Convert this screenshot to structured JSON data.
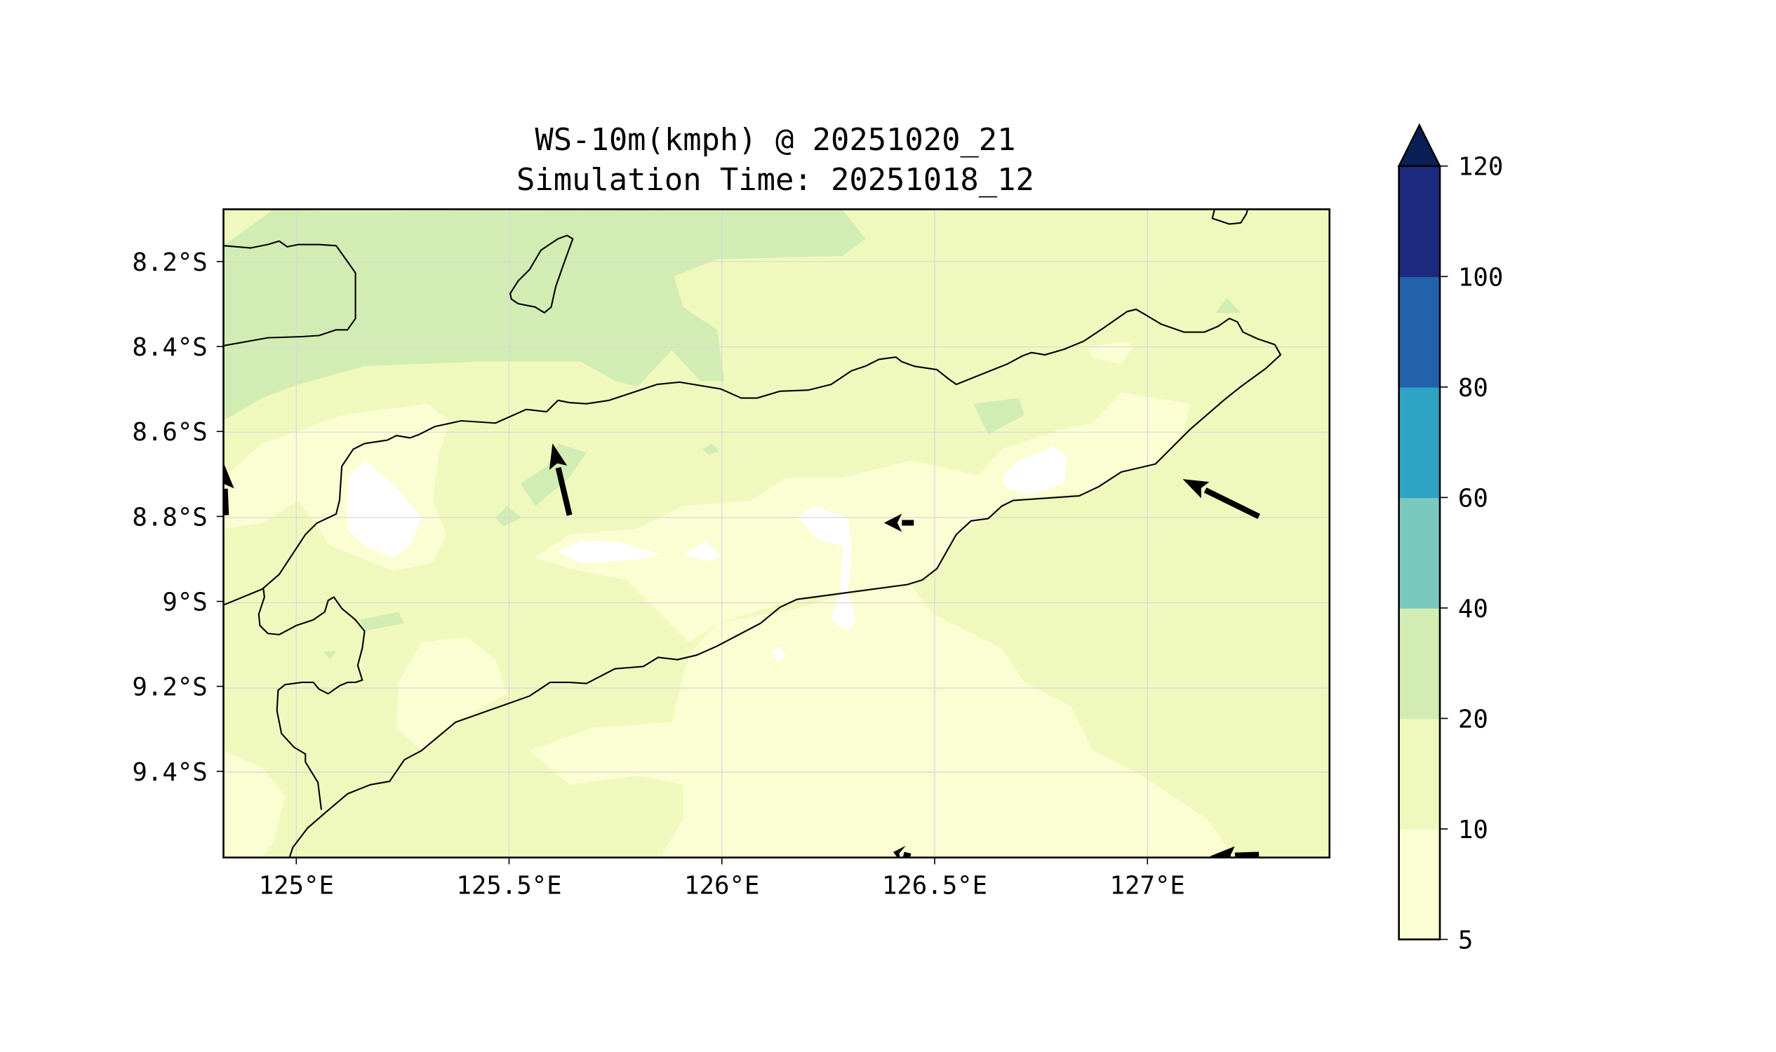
{
  "chart_data": {
    "type": "heatmap",
    "subtype": "filled-contour-map",
    "title": [
      "WS-10m(kmph) @ 20251020_21",
      "Simulation Time: 20251018_12"
    ],
    "variable": "10 m wind speed (km/h)",
    "xlabel": "",
    "ylabel": "",
    "xlim": [
      124.83,
      127.43
    ],
    "ylim": [
      9.6,
      8.08
    ],
    "x_ticks": [
      125,
      125.5,
      126,
      126.5,
      127
    ],
    "x_tick_labels": [
      "125°E",
      "125.5°E",
      "126°E",
      "126.5°E",
      "127°E"
    ],
    "y_ticks": [
      8.2,
      8.4,
      8.6,
      8.8,
      9.0,
      9.2,
      9.4
    ],
    "y_tick_labels": [
      "8.2°S",
      "8.4°S",
      "8.6°S",
      "8.8°S",
      "9°S",
      "9.2°S",
      "9.4°S"
    ],
    "grid": true,
    "colorbar": {
      "levels": [
        5,
        10,
        20,
        40,
        60,
        80,
        100,
        120
      ],
      "tick_labels": [
        "5",
        "10",
        "20",
        "40",
        "60",
        "80",
        "100",
        "120"
      ],
      "colors": [
        "#fbfed3",
        "#f0f9bd",
        "#d2edb3",
        "#79cabd",
        "#2fa3c4",
        "#2162aa",
        "#1b2a7e"
      ],
      "extend_color": "#0b1f57",
      "extend": "max",
      "placement": "right"
    },
    "dominant_range_kmph": [
      5,
      20
    ],
    "wind_vectors": [
      {
        "tail": [
          125.642,
          8.797
        ],
        "head": [
          125.602,
          8.628
        ]
      },
      {
        "tail": [
          127.262,
          8.8
        ],
        "head": [
          127.083,
          8.712
        ]
      },
      {
        "tail": [
          126.451,
          8.815
        ],
        "head": [
          126.381,
          8.815
        ]
      },
      {
        "tail": [
          124.835,
          8.797
        ],
        "head": [
          124.83,
          8.676
        ]
      },
      {
        "tail": [
          127.262,
          9.596
        ],
        "head": [
          127.147,
          9.6
        ]
      },
      {
        "tail": [
          126.443,
          9.6
        ],
        "head": [
          126.403,
          9.59
        ]
      }
    ]
  }
}
